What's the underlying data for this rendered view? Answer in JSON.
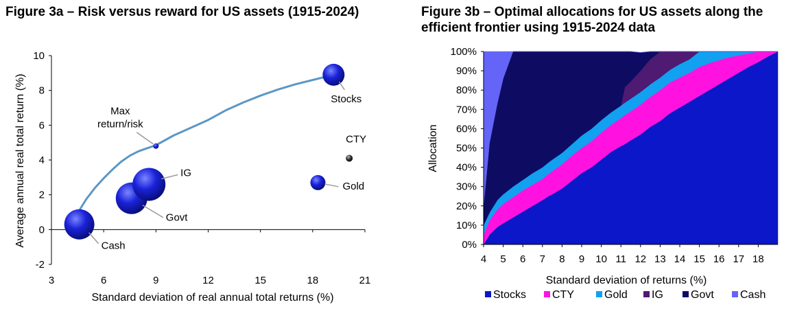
{
  "chart_data": [
    {
      "type": "scatter",
      "title": "Figure 3a – Risk versus reward for US assets (1915-2024)",
      "xlabel": "Standard deviation  of real annual total returns (%)",
      "ylabel": "Average annual real total return (%)",
      "xlim": [
        3,
        21
      ],
      "ylim": [
        -2,
        10
      ],
      "x_ticks": [
        "3",
        "6",
        "9",
        "12",
        "15",
        "18",
        "21"
      ],
      "y_ticks": [
        "-2",
        "0",
        "2",
        "4",
        "6",
        "8",
        "10"
      ],
      "points": [
        {
          "label": "Stocks",
          "x": 19.2,
          "y": 8.9
        },
        {
          "label": "CTY",
          "x": 20.1,
          "y": 4.1
        },
        {
          "label": "Gold",
          "x": 18.3,
          "y": 2.7
        },
        {
          "label": "IG",
          "x": 8.6,
          "y": 2.6
        },
        {
          "label": "Govt",
          "x": 7.6,
          "y": 1.8
        },
        {
          "label": "Cash",
          "x": 4.6,
          "y": 0.3
        }
      ],
      "frontier": {
        "label": "Max return/risk",
        "marker": {
          "x": 9.0,
          "y": 4.8
        },
        "x": [
          4.6,
          5.0,
          5.5,
          6.0,
          6.5,
          7.0,
          7.5,
          8.0,
          8.5,
          9.0,
          10.0,
          11.0,
          12.0,
          13.0,
          14.0,
          15.0,
          16.0,
          17.0,
          18.0,
          19.2
        ],
        "y": [
          1.1,
          1.75,
          2.4,
          2.95,
          3.45,
          3.9,
          4.25,
          4.5,
          4.68,
          4.85,
          5.4,
          5.85,
          6.3,
          6.85,
          7.3,
          7.7,
          8.05,
          8.35,
          8.6,
          8.9
        ]
      },
      "grid": false,
      "colors": {
        "marker": "#1010c8",
        "frontier": "#5b97c5"
      }
    },
    {
      "type": "area",
      "title": "Figure 3b – Optimal allocations for US assets along the efficient frontier using 1915-2024 data",
      "xlabel": "Standard deviation  of returns (%)",
      "ylabel": "Allocation",
      "xlim": [
        4,
        19
      ],
      "ylim": [
        0,
        100
      ],
      "x_ticks": [
        "4",
        "5",
        "6",
        "7",
        "8",
        "9",
        "10",
        "11",
        "12",
        "13",
        "14",
        "15",
        "16",
        "17",
        "18"
      ],
      "y_ticks": [
        "0%",
        "10%",
        "20%",
        "30%",
        "40%",
        "50%",
        "60%",
        "70%",
        "80%",
        "90%",
        "100%"
      ],
      "x": [
        4.0,
        4.3,
        4.7,
        5.0,
        5.5,
        6.0,
        6.5,
        7.0,
        7.3,
        7.5,
        8.0,
        8.5,
        9.0,
        9.5,
        10.0,
        10.5,
        11.0,
        11.2,
        11.5,
        12.0,
        12.5,
        13.0,
        13.5,
        14.0,
        14.5,
        15.0,
        15.5,
        16.0,
        16.5,
        17.0,
        17.5,
        18.0,
        18.5,
        19.0
      ],
      "series": [
        {
          "name": "Stocks",
          "color": "#0b17c8",
          "values": [
            0,
            5,
            9,
            11,
            14,
            17,
            20,
            23,
            25,
            26,
            29,
            33,
            37,
            40,
            44,
            48,
            51,
            52,
            54,
            57,
            61,
            64,
            68,
            71,
            74,
            77,
            80,
            83,
            86,
            89,
            92,
            94.5,
            97.5,
            100
          ]
        },
        {
          "name": "CTY",
          "color": "#ff12e0",
          "values": [
            5,
            7.5,
            9,
            10,
            10.5,
            11,
            11,
            11,
            11.5,
            12,
            12.5,
            13,
            13,
            13.5,
            14,
            14,
            14.5,
            15,
            15,
            15.5,
            15.5,
            16,
            16,
            15.5,
            15,
            15,
            14,
            12.5,
            11,
            9,
            7,
            5.5,
            2.5,
            0
          ]
        },
        {
          "name": "Gold",
          "color": "#12a0f0",
          "values": [
            5,
            4,
            5,
            5,
            5.5,
            5.5,
            6,
            6,
            6,
            6,
            6,
            6,
            6.5,
            6.5,
            6.5,
            6.5,
            6.5,
            6.5,
            6.5,
            6.5,
            6.5,
            6.5,
            6.5,
            7,
            7,
            8,
            6,
            4.5,
            3,
            2,
            1,
            0,
            0,
            0
          ]
        },
        {
          "name": "IG",
          "color": "#4e1a72",
          "values": [
            0,
            0,
            0,
            0,
            0,
            0,
            0,
            0,
            0,
            0,
            0,
            0,
            0,
            0,
            0,
            0,
            0,
            8,
            9,
            11,
            13,
            13.5,
            9.5,
            6.5,
            4,
            0,
            0,
            0,
            0,
            0,
            0,
            0,
            0,
            0
          ]
        },
        {
          "name": "Govt",
          "color": "#0d0c62",
          "values": [
            10,
            36,
            50,
            60,
            70,
            77,
            63,
            60,
            57.5,
            56,
            52.5,
            48,
            43.5,
            40,
            35.5,
            31.5,
            28,
            18.5,
            15.5,
            9.5,
            4,
            0,
            0,
            0,
            0,
            0,
            0,
            0,
            0,
            0,
            0,
            0,
            0,
            0
          ]
        },
        {
          "name": "Cash",
          "color": "#6464f8",
          "values": [
            80,
            47.5,
            27,
            14,
            0,
            0,
            0,
            0,
            0,
            0,
            0,
            0,
            0,
            0,
            0,
            0,
            0,
            0,
            0,
            0,
            0,
            0,
            0,
            0,
            0,
            0,
            0,
            0,
            0,
            0,
            0,
            0,
            0,
            0
          ]
        }
      ],
      "legend": "bottom"
    }
  ]
}
